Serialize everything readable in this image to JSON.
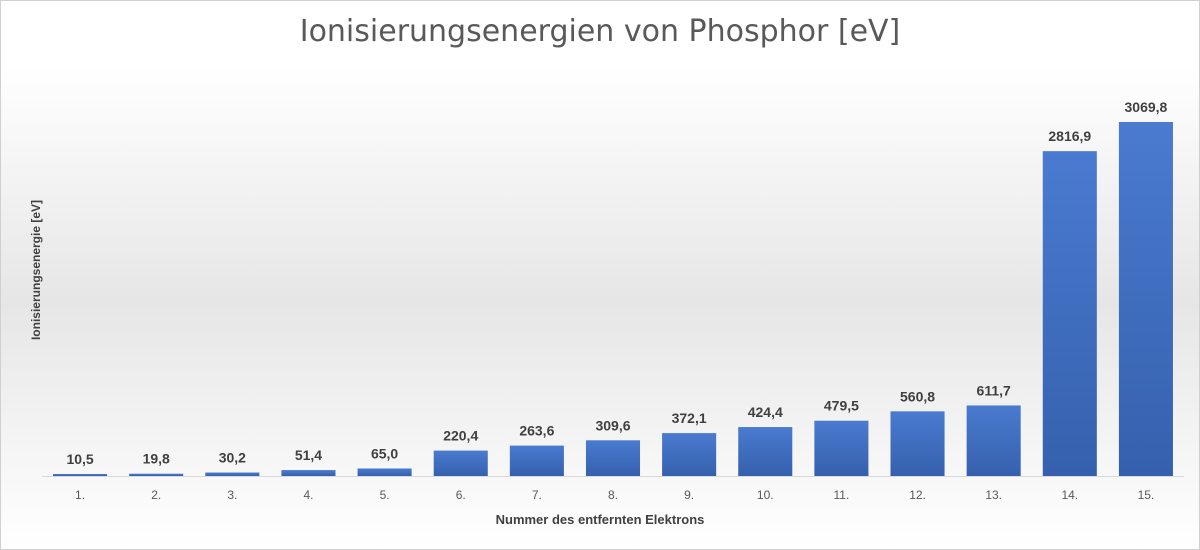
{
  "chart_data": {
    "type": "bar",
    "title": "Ionisierungsenergien von Phosphor [eV]",
    "xlabel": "Nummer des entfernten Elektrons",
    "ylabel": "Ionisierungsenergie [eV]",
    "categories": [
      "1.",
      "2.",
      "3.",
      "4.",
      "5.",
      "6.",
      "7.",
      "8.",
      "9.",
      "10.",
      "11.",
      "12.",
      "13.",
      "14.",
      "15."
    ],
    "values": [
      10.5,
      19.8,
      30.2,
      51.4,
      65.0,
      220.4,
      263.6,
      309.6,
      372.1,
      424.4,
      479.5,
      560.8,
      611.7,
      2816.9,
      3069.8
    ],
    "value_labels": [
      "10,5",
      "19,8",
      "30,2",
      "51,4",
      "65,0",
      "220,4",
      "263,6",
      "309,6",
      "372,1",
      "424,4",
      "479,5",
      "560,8",
      "611,7",
      "2816,9",
      "3069,8"
    ],
    "ylim": [
      0,
      3069.8
    ],
    "grid": false,
    "legend": "none",
    "bar_color": "#4472C4"
  }
}
